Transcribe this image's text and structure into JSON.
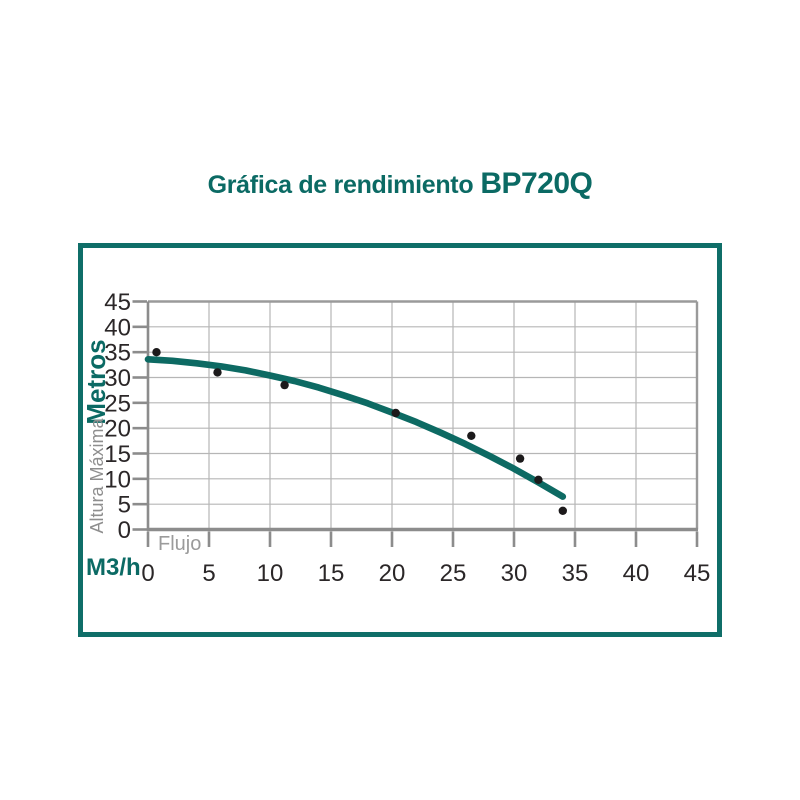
{
  "title": {
    "regular": "Gráfica de rendimiento",
    "model": "BP720Q"
  },
  "colors": {
    "teal_text": "#0b6a64",
    "teal_curve": "#0d6a63",
    "teal_frame": "#0f6e68",
    "grid": "#b6b6b6",
    "plot_border": "#9a9a9a",
    "axis": "#8c8c8c",
    "tick_text": "#2b2728",
    "muted": "#8e8e8e",
    "flujo": "#9b9b9b",
    "dot": "#1c1a1b"
  },
  "chart_data": {
    "type": "scatter",
    "title": "Gráfica de rendimiento BP720Q",
    "grid": true,
    "legend": "none",
    "x_axis": {
      "unit_label": "M3/h",
      "flow_label": "Flujo",
      "ticks": [
        0,
        5,
        10,
        15,
        20,
        25,
        30,
        35,
        40,
        45
      ],
      "range": [
        0,
        45
      ]
    },
    "y_axis": {
      "main_label": "Metros",
      "sub_label": "Altura Máxima",
      "ticks": [
        0,
        5,
        10,
        15,
        20,
        25,
        30,
        35,
        40,
        45
      ],
      "range": [
        0,
        45
      ]
    },
    "points": [
      {
        "x": 0.7,
        "y": 35
      },
      {
        "x": 5.7,
        "y": 31
      },
      {
        "x": 11.2,
        "y": 28.5
      },
      {
        "x": 20.3,
        "y": 23
      },
      {
        "x": 26.5,
        "y": 18.5
      },
      {
        "x": 30.5,
        "y": 14
      },
      {
        "x": 32,
        "y": 9.8
      },
      {
        "x": 34,
        "y": 3.7
      }
    ],
    "curve_samples": [
      {
        "x": 0,
        "y": 33.6
      },
      {
        "x": 2,
        "y": 33.3
      },
      {
        "x": 4,
        "y": 32.8
      },
      {
        "x": 6,
        "y": 32.2
      },
      {
        "x": 8,
        "y": 31.4
      },
      {
        "x": 10,
        "y": 30.4
      },
      {
        "x": 12,
        "y": 29.3
      },
      {
        "x": 14,
        "y": 28.0
      },
      {
        "x": 16,
        "y": 26.5
      },
      {
        "x": 18,
        "y": 24.9
      },
      {
        "x": 20,
        "y": 23.1
      },
      {
        "x": 22,
        "y": 21.2
      },
      {
        "x": 24,
        "y": 19.1
      },
      {
        "x": 26,
        "y": 16.9
      },
      {
        "x": 28,
        "y": 14.5
      },
      {
        "x": 30,
        "y": 12.0
      },
      {
        "x": 32,
        "y": 9.3
      },
      {
        "x": 34,
        "y": 6.5
      }
    ]
  }
}
